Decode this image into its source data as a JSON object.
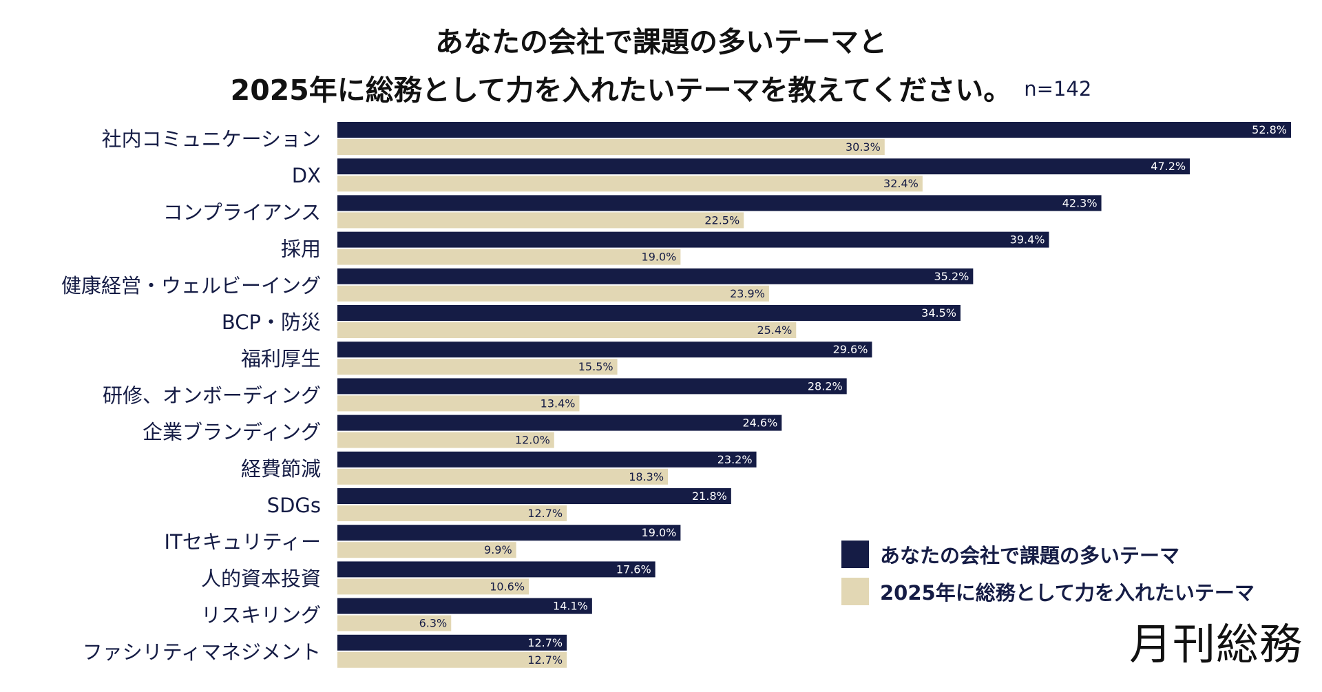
{
  "chart_data": {
    "type": "bar",
    "orientation": "horizontal",
    "title_line1": "あなたの会社で課題の多いテーマと",
    "title_line2": "2025年に総務として力を入れたいテーマを教えてください。",
    "sample_size": "n=142",
    "categories": [
      "社内コミュニケーション",
      "DX",
      "コンプライアンス",
      "採用",
      "健康経営・ウェルビーイング",
      "BCP・防災",
      "福利厚生",
      "研修、オンボーディング",
      "企業ブランディング",
      "経費節減",
      "SDGs",
      "ITセキュリティー",
      "人的資本投資",
      "リスキリング",
      "ファシリティマネジメント"
    ],
    "series": [
      {
        "name": "あなたの会社で課題の多いテーマ",
        "color": "#151c45",
        "values": [
          52.8,
          47.2,
          42.3,
          39.4,
          35.2,
          34.5,
          29.6,
          28.2,
          24.6,
          23.2,
          21.8,
          19.0,
          17.6,
          14.1,
          12.7
        ],
        "labels": [
          "52.8%",
          "47.2%",
          "42.3%",
          "39.4%",
          "35.2%",
          "34.5%",
          "29.6%",
          "28.2%",
          "24.6%",
          "23.2%",
          "21.8%",
          "19.0%",
          "17.6%",
          "14.1%",
          "12.7%"
        ]
      },
      {
        "name": "2025年に総務として力を入れたいテーマ",
        "color": "#e2d7b4",
        "values": [
          30.3,
          32.4,
          22.5,
          19.0,
          23.9,
          25.4,
          15.5,
          13.4,
          12.0,
          18.3,
          12.7,
          9.9,
          10.6,
          6.3,
          12.7
        ],
        "labels": [
          "30.3%",
          "32.4%",
          "22.5%",
          "19.0%",
          "23.9%",
          "25.4%",
          "15.5%",
          "13.4%",
          "12.0%",
          "18.3%",
          "12.7%",
          "9.9%",
          "10.6%",
          "6.3%",
          "12.7%"
        ]
      }
    ],
    "xlim": [
      0,
      52.8
    ],
    "grid": false,
    "legend_position": "bottom-right"
  },
  "brand": "月刊総務"
}
